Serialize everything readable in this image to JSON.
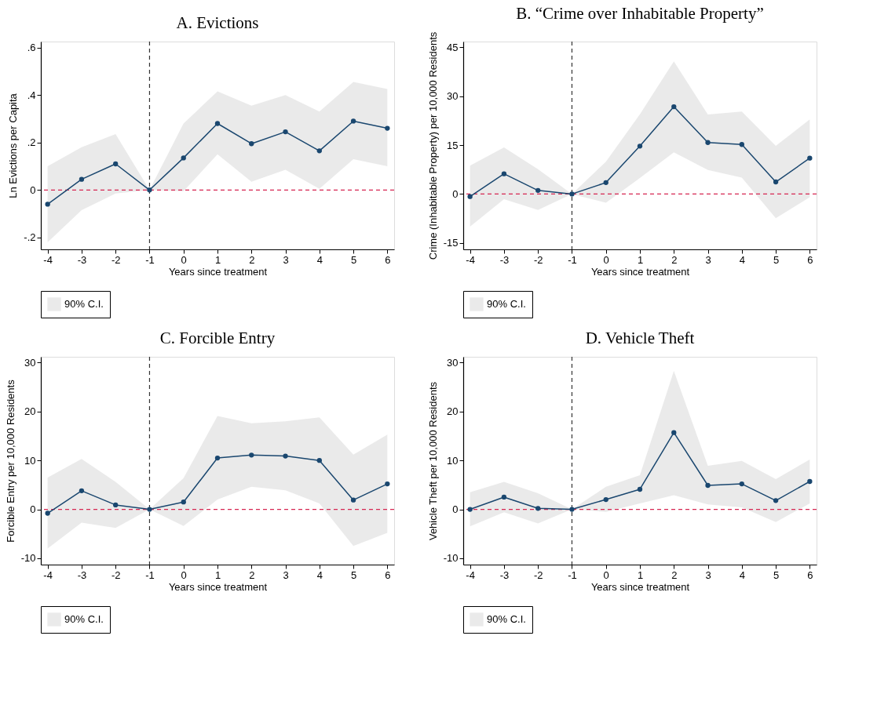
{
  "chart_data": [
    {
      "type": "line",
      "title": "A. Evictions",
      "xlabel": "Years since treatment",
      "ylabel": "Ln Evictions per Capita",
      "x": [
        -4,
        -3,
        -2,
        -1,
        0,
        1,
        2,
        3,
        4,
        5,
        6
      ],
      "xlim": [
        -4.2,
        6.2
      ],
      "xticks": [
        -4,
        -3,
        -2,
        -1,
        0,
        1,
        2,
        3,
        4,
        5,
        6
      ],
      "ylim": [
        -0.25,
        0.625
      ],
      "yticks": [
        {
          "value": -0.2,
          "label": "-.2"
        },
        0,
        {
          "value": 0.2,
          "label": ".2"
        },
        {
          "value": 0.4,
          "label": ".4"
        },
        {
          "value": 0.6,
          "label": ".6"
        }
      ],
      "marker": "circle",
      "line_style": "solid",
      "legend": "bottom",
      "series": [
        {
          "type": "area",
          "name": "90% C.I.",
          "color": "#e6e6e6",
          "values": [
            null,
            null,
            null,
            null,
            null,
            null,
            null,
            null,
            null,
            null,
            null
          ],
          "lower": [
            -0.22,
            -0.085,
            -0.015,
            0,
            -0.005,
            0.15,
            0.035,
            0.085,
            0.005,
            0.13,
            0.1
          ],
          "upper": [
            0.1,
            0.18,
            0.235,
            0,
            0.28,
            0.415,
            0.355,
            0.4,
            0.33,
            0.455,
            0.425
          ]
        },
        {
          "color": "#1a476f",
          "values": [
            -0.06,
            0.045,
            0.11,
            0,
            0.135,
            0.28,
            0.195,
            0.245,
            0.165,
            0.29,
            0.26
          ]
        }
      ],
      "ref_lines": [
        {
          "axis": "y",
          "value": 0,
          "color": "#d62652",
          "line_style": "dashed"
        },
        {
          "axis": "x",
          "value": -1,
          "color": "#333333",
          "line_style": "dashed"
        }
      ]
    },
    {
      "type": "line",
      "title": "B. “Crime over Inhabitable Property”",
      "xlabel": "Years since treatment",
      "ylabel": "Crime (Inhabitable Property) per 10,000 Residents",
      "x": [
        -4,
        -3,
        -2,
        -1,
        0,
        1,
        2,
        3,
        4,
        5,
        6
      ],
      "xlim": [
        -4.2,
        6.2
      ],
      "xticks": [
        -4,
        -3,
        -2,
        -1,
        0,
        1,
        2,
        3,
        4,
        5,
        6
      ],
      "ylim": [
        -17,
        46.8
      ],
      "yticks": [
        -15,
        0,
        15,
        30,
        45
      ],
      "marker": "circle",
      "line_style": "solid",
      "legend": "bottom",
      "series": [
        {
          "type": "area",
          "name": "90% C.I.",
          "color": "#e6e6e6",
          "values": [
            null,
            null,
            null,
            null,
            null,
            null,
            null,
            null,
            null,
            null,
            null
          ],
          "lower": [
            -10.0,
            -1.6,
            -4.9,
            0,
            -2.7,
            4.9,
            12.8,
            7.4,
            5.0,
            -7.4,
            -1.0
          ],
          "upper": [
            8.7,
            14.3,
            7.6,
            0,
            9.9,
            24.5,
            40.7,
            24.4,
            25.3,
            14.8,
            22.9
          ]
        },
        {
          "color": "#1a476f",
          "values": [
            -0.8,
            6.2,
            1.1,
            0,
            3.5,
            14.7,
            26.8,
            15.8,
            15.2,
            3.7,
            11.0
          ]
        }
      ],
      "ref_lines": [
        {
          "axis": "y",
          "value": 0,
          "color": "#d62652",
          "line_style": "dashed"
        },
        {
          "axis": "x",
          "value": -1,
          "color": "#333333",
          "line_style": "dashed"
        }
      ]
    },
    {
      "type": "line",
      "title": "C. Forcible Entry",
      "xlabel": "Years since treatment",
      "ylabel": "Forcible Entry per 10,000 Residents",
      "x": [
        -4,
        -3,
        -2,
        -1,
        0,
        1,
        2,
        3,
        4,
        5,
        6
      ],
      "xlim": [
        -4.2,
        6.2
      ],
      "xticks": [
        -4,
        -3,
        -2,
        -1,
        0,
        1,
        2,
        3,
        4,
        5,
        6
      ],
      "ylim": [
        -11.3,
        31.2
      ],
      "yticks": [
        -10,
        0,
        10,
        20,
        30
      ],
      "marker": "circle",
      "line_style": "solid",
      "legend": "bottom",
      "series": [
        {
          "type": "area",
          "name": "90% C.I.",
          "color": "#e6e6e6",
          "values": [
            null,
            null,
            null,
            null,
            null,
            null,
            null,
            null,
            null,
            null,
            null
          ],
          "lower": [
            -8.0,
            -2.7,
            -3.8,
            0,
            -3.4,
            2.0,
            4.6,
            3.9,
            1.2,
            -7.5,
            -4.8
          ],
          "upper": [
            6.5,
            10.3,
            5.6,
            0,
            6.4,
            19.1,
            17.6,
            18.0,
            18.8,
            11.2,
            15.3
          ]
        },
        {
          "color": "#1a476f",
          "values": [
            -0.8,
            3.8,
            0.9,
            0,
            1.5,
            10.5,
            11.1,
            10.9,
            10.0,
            1.9,
            5.2
          ]
        }
      ],
      "ref_lines": [
        {
          "axis": "y",
          "value": 0,
          "color": "#d62652",
          "line_style": "dashed"
        },
        {
          "axis": "x",
          "value": -1,
          "color": "#333333",
          "line_style": "dashed"
        }
      ]
    },
    {
      "type": "line",
      "title": "D. Vehicle Theft",
      "xlabel": "Years since treatment",
      "ylabel": "Vehicle Theft per 10,000 Residents",
      "x": [
        -4,
        -3,
        -2,
        -1,
        0,
        1,
        2,
        3,
        4,
        5,
        6
      ],
      "xlim": [
        -4.2,
        6.2
      ],
      "xticks": [
        -4,
        -3,
        -2,
        -1,
        0,
        1,
        2,
        3,
        4,
        5,
        6
      ],
      "ylim": [
        -11.3,
        31.2
      ],
      "yticks": [
        -10,
        0,
        10,
        20,
        30
      ],
      "marker": "circle",
      "line_style": "solid",
      "legend": "bottom",
      "series": [
        {
          "type": "area",
          "name": "90% C.I.",
          "color": "#e6e6e6",
          "values": [
            null,
            null,
            null,
            null,
            null,
            null,
            null,
            null,
            null,
            null,
            null
          ],
          "lower": [
            -3.5,
            -0.6,
            -2.9,
            0,
            -0.5,
            1.2,
            2.9,
            1.0,
            0.4,
            -2.6,
            1.2
          ],
          "upper": [
            3.5,
            5.6,
            3.3,
            0,
            4.6,
            7.0,
            28.3,
            8.9,
            9.9,
            6.2,
            10.2
          ]
        },
        {
          "color": "#1a476f",
          "values": [
            0,
            2.5,
            0.2,
            0,
            2.0,
            4.1,
            15.7,
            4.9,
            5.2,
            1.8,
            5.7
          ]
        }
      ],
      "ref_lines": [
        {
          "axis": "y",
          "value": 0,
          "color": "#d62652",
          "line_style": "dashed"
        },
        {
          "axis": "x",
          "value": -1,
          "color": "#333333",
          "line_style": "dashed"
        }
      ]
    }
  ]
}
